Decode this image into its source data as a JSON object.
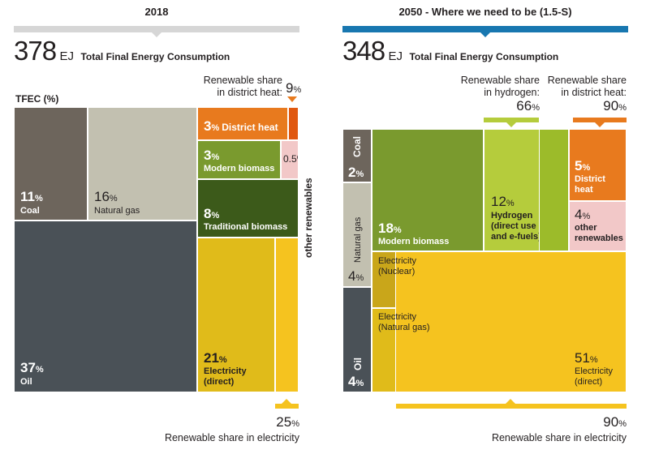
{
  "chart_data": [
    {
      "type": "treemap",
      "header": "2018",
      "total_value": "378",
      "total_unit": "EJ",
      "total_label": "Total Final Energy Consumption",
      "axis_label": "TFEC (%)",
      "cells": [
        {
          "name": "Coal",
          "value": 11,
          "value_text": "11",
          "color": "#6d655c"
        },
        {
          "name": "Natural gas",
          "value": 16,
          "value_text": "16",
          "color": "#c2c0b0"
        },
        {
          "name": "Oil",
          "value": 37,
          "value_text": "37",
          "color": "#4a5157"
        },
        {
          "name": "District heat",
          "value": 3,
          "value_text": "3",
          "color": "#e87a1e"
        },
        {
          "name": "Modern biomass",
          "value": 3,
          "value_text": "3",
          "color": "#7a9a2e"
        },
        {
          "name": "other renewables",
          "value": 0.5,
          "value_text": "0.5",
          "color": "#f2c8c8"
        },
        {
          "name": "Traditional biomass",
          "value": 8,
          "value_text": "8",
          "color": "#3c5a1a"
        },
        {
          "name": "Electricity (direct)",
          "value": 21,
          "value_text": "21",
          "color": "#e0bb1a"
        }
      ],
      "renewable_shares": [
        {
          "label": "Renewable share in district heat:",
          "value": 9,
          "value_text": "9",
          "unit": "%"
        },
        {
          "label": "Renewable share in electricity",
          "value": 25,
          "value_text": "25",
          "unit": "%"
        }
      ]
    },
    {
      "type": "treemap",
      "header": "2050  -  Where we need to be (1.5-S)",
      "total_value": "348",
      "total_unit": "EJ",
      "total_label": "Total Final Energy Consumption",
      "cells": [
        {
          "name": "Coal",
          "value": 2,
          "value_text": "2",
          "color": "#6d655c"
        },
        {
          "name": "Natural gas",
          "value": 4,
          "value_text": "4",
          "color": "#c2c0b0"
        },
        {
          "name": "Oil",
          "value": 4,
          "value_text": "4",
          "color": "#4a5157"
        },
        {
          "name": "Modern biomass",
          "value": 18,
          "value_text": "18",
          "color": "#7a9a2e"
        },
        {
          "name": "Hydrogen (direct use and e-fuels)*",
          "value": 12,
          "value_text": "12",
          "color": "#b5cc3c"
        },
        {
          "name": "District heat",
          "value": 5,
          "value_text": "5",
          "color": "#e87a1e"
        },
        {
          "name": "other renewables",
          "value": 4,
          "value_text": "4",
          "color": "#f2c8c8"
        },
        {
          "name": "Electricity (direct)",
          "value": 51,
          "value_text": "51",
          "color": "#f5c31f"
        }
      ],
      "electricity_sub_labels": [
        "Electricity (Nuclear)",
        "Electricity (Natural gas)"
      ],
      "renewable_shares": [
        {
          "label": "Renewable share in hydrogen:",
          "value": 66,
          "value_text": "66",
          "unit": "%"
        },
        {
          "label": "Renewable share in district heat:",
          "value": 90,
          "value_text": "90",
          "unit": "%"
        },
        {
          "label": "Renewable share in electricity",
          "value": 90,
          "value_text": "90",
          "unit": "%"
        }
      ]
    }
  ],
  "text": {
    "pct": "%",
    "left_hydro_lines": [
      "Hydrogen",
      "(direct use",
      "and e-fuels)*"
    ],
    "left_other_ren": "other renewables",
    "other_ren_lines": [
      "other",
      "renewables"
    ],
    "dh_lines": [
      "District",
      "heat"
    ],
    "elec_lines": [
      "Electricity",
      "(direct)"
    ],
    "nuclear_lines": [
      "Electricity",
      "(Nuclear)"
    ],
    "natgas_elec_lines": [
      "Electricity",
      "(Natural gas)"
    ],
    "share_dh_lines": [
      "Renewable share",
      "in district heat:"
    ],
    "share_h2_lines": [
      "Renewable share",
      "in hydrogen:"
    ]
  }
}
